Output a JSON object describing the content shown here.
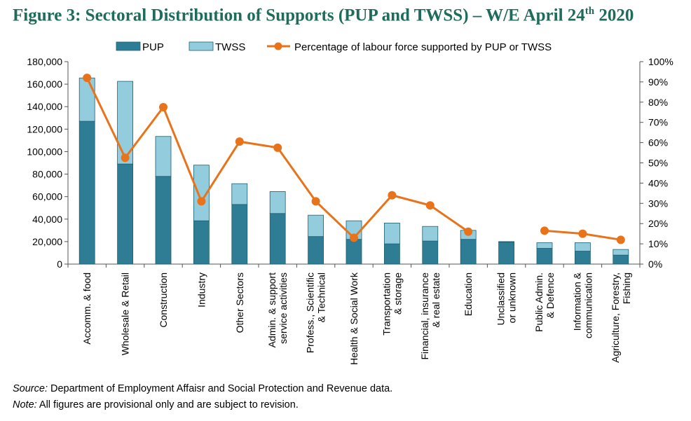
{
  "title": {
    "main": "Figure 3: Sectoral Distribution of Supports (PUP and TWSS) – W/E April 24",
    "sup": "th",
    "tail": " 2020"
  },
  "footnotes": {
    "source_label": "Source:",
    "source_text": " Department of Employment Affaisr and Social Protection and Revenue data.",
    "note_label": "Note:",
    "note_text": " All figures are provisional only and are subject to revision."
  },
  "colors": {
    "pup": "#2e7d95",
    "twss": "#93cddd",
    "line": "#e8731a",
    "axis": "#555555"
  },
  "chart_data": {
    "type": "bar",
    "stacked": true,
    "categories": [
      "Accomm. & food",
      "Wholesale & Retail",
      "Construction",
      "Industry",
      "Other Sectors",
      "Admin. & support service activities",
      "Profess., Scientific & Technical",
      "Health & Social Work",
      "Transportation & storage",
      "Financial, insurance & real estate",
      "Education",
      "Unclassified or unknown",
      "Public Admin. & Defence",
      "Information & communication",
      "Agriculture, Forestry, Fishing"
    ],
    "category_label_lines": [
      [
        "Accomm. & food"
      ],
      [
        "Wholesale & Retail"
      ],
      [
        "Construction"
      ],
      [
        "Industry"
      ],
      [
        "Other Sectors"
      ],
      [
        "Admin. & support",
        "service activities"
      ],
      [
        "Profess., Scientific",
        "& Technical"
      ],
      [
        "Health & Social Work"
      ],
      [
        "Transportation",
        "& storage"
      ],
      [
        "Financial, insurance",
        "& real estate"
      ],
      [
        "Education"
      ],
      [
        "Unclassified",
        "or unknown"
      ],
      [
        "Public Admin.",
        "& Defence"
      ],
      [
        "Information &",
        "communication"
      ],
      [
        "Agriculture, Forestry,",
        "Fishing"
      ]
    ],
    "series": [
      {
        "name": "PUP",
        "kind": "bar",
        "axis": "left",
        "values": [
          127000,
          89000,
          78000,
          38500,
          53000,
          45000,
          24500,
          22000,
          18000,
          20500,
          22000,
          19500,
          14000,
          11500,
          8000
        ]
      },
      {
        "name": "TWSS",
        "kind": "bar",
        "axis": "left",
        "values": [
          38500,
          73500,
          35500,
          49500,
          18500,
          19500,
          19000,
          16500,
          18500,
          13000,
          8000,
          500,
          5000,
          7500,
          5000
        ]
      },
      {
        "name": "Percentage of labour force supported by PUP or TWSS",
        "kind": "line",
        "axis": "right",
        "values": [
          92,
          52.5,
          77.5,
          31,
          60.5,
          57.5,
          31,
          13,
          34,
          29,
          16,
          null,
          16.5,
          15,
          12
        ]
      }
    ],
    "y_left": {
      "min": 0,
      "max": 180000,
      "step": 20000,
      "tick_labels": [
        "0",
        "20,000",
        "40,000",
        "60,000",
        "80,000",
        "100,000",
        "120,000",
        "140,000",
        "160,000",
        "180,000"
      ]
    },
    "y_right": {
      "min": 0,
      "max": 100,
      "step": 10,
      "tick_labels": [
        "0%",
        "10%",
        "20%",
        "30%",
        "40%",
        "50%",
        "60%",
        "70%",
        "80%",
        "90%",
        "100%"
      ]
    },
    "legend_position": "top",
    "grid": false
  }
}
